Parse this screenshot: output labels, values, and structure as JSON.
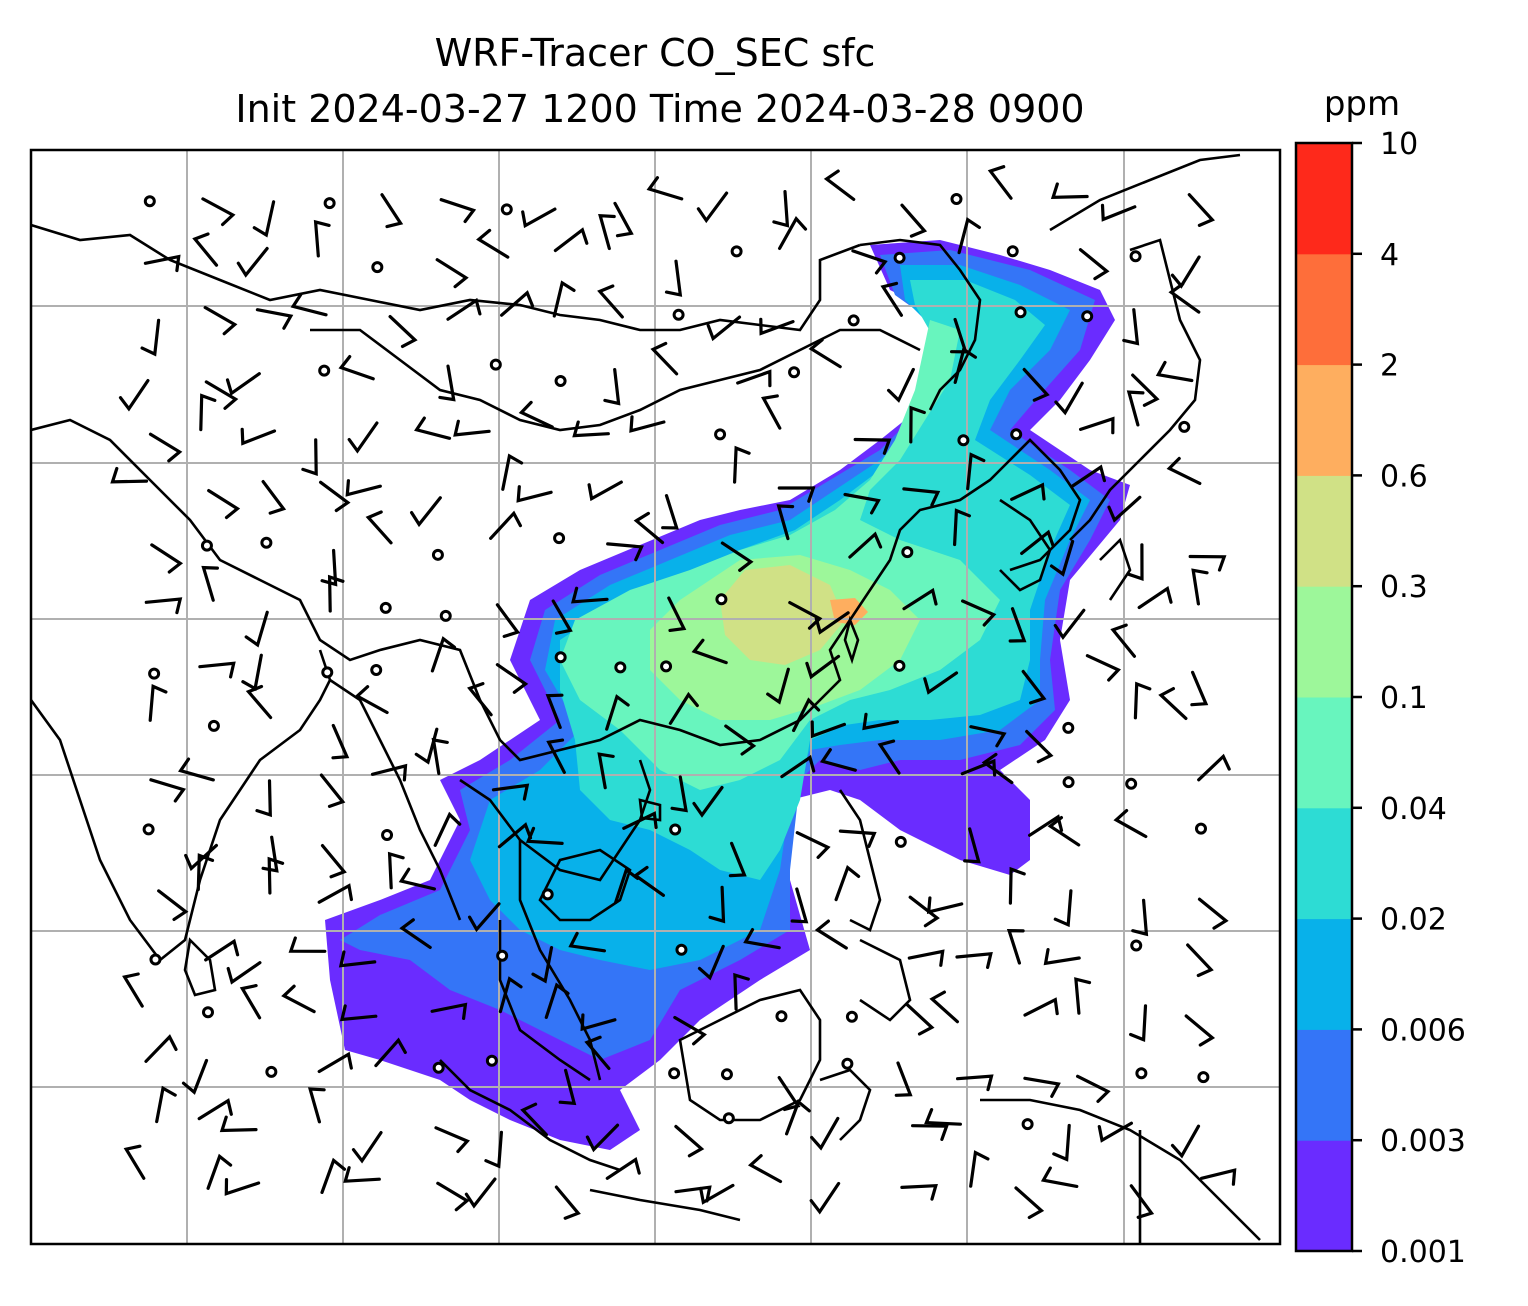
{
  "title": {
    "line1": "WRF-Tracer CO_SEC sfc",
    "line2": "Init 2024-03-27 1200 Time 2024-03-28 0900"
  },
  "colorbar": {
    "unit": "ppm",
    "levels": [
      "0.001",
      "0.003",
      "0.006",
      "0.02",
      "0.04",
      "0.1",
      "0.3",
      "0.6",
      "2",
      "4",
      "10"
    ],
    "colors": [
      "#6a2cff",
      "#3475f7",
      "#08b1ea",
      "#2ddcd4",
      "#68f5be",
      "#9df79a",
      "#d0e186",
      "#feae5f",
      "#fe6e3a",
      "#fe291b"
    ]
  },
  "map": {
    "variable": "CO_SEC",
    "level": "sfc",
    "features": [
      "coastlines",
      "country-borders",
      "gridlines",
      "wind-barbs",
      "calm-wind-circles",
      "filled-contours"
    ]
  }
}
